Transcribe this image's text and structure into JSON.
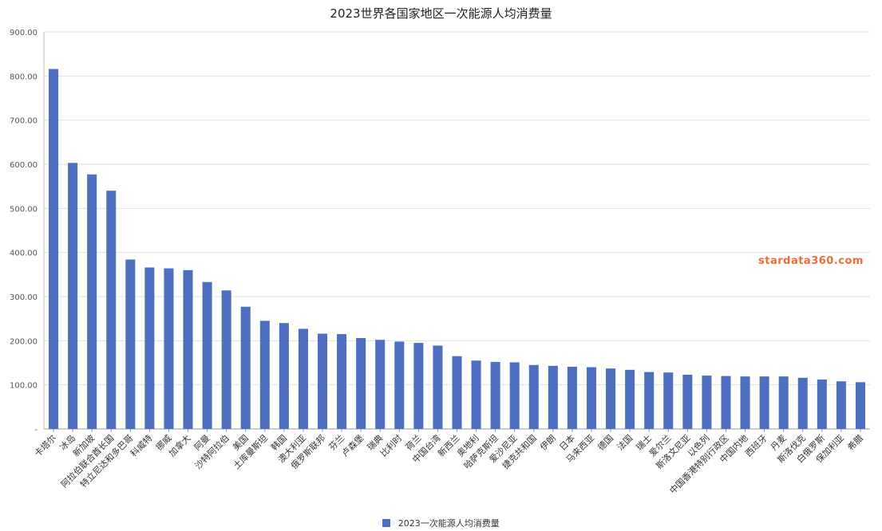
{
  "chart_data": {
    "type": "bar",
    "title": "2023世界各国家地区一次能源人均消费量",
    "series": [
      {
        "name": "2023一次能源人均消费量",
        "color": "#4e6fbf",
        "values": [
          816,
          603,
          577,
          540,
          384,
          366,
          364,
          360,
          333,
          314,
          277,
          245,
          240,
          227,
          216,
          215,
          206,
          202,
          198,
          195,
          189,
          165,
          155,
          152,
          151,
          145,
          143,
          141,
          140,
          137,
          134,
          129,
          128,
          123,
          121,
          120,
          119,
          119,
          119,
          116,
          112,
          108,
          106
        ]
      }
    ],
    "categories": [
      "卡塔尔",
      "冰岛",
      "新加坡",
      "阿拉伯联合酋长国",
      "特立尼达和多巴哥",
      "科威特",
      "挪威",
      "加拿大",
      "阿曼",
      "沙特阿拉伯",
      "美国",
      "土库曼斯坦",
      "韩国",
      "澳大利亚",
      "俄罗斯联邦",
      "芬兰",
      "卢森堡",
      "瑞典",
      "比利时",
      "荷兰",
      "中国台湾",
      "新西兰",
      "奥地利",
      "哈萨克斯坦",
      "爱沙尼亚",
      "捷克共和国",
      "伊朗",
      "日本",
      "马来西亚",
      "德国",
      "法国",
      "瑞士",
      "爱尔兰",
      "斯洛文尼亚",
      "以色列",
      "中国香港特别行政区",
      "中国内地",
      "西班牙",
      "丹麦",
      "斯洛伐克",
      "白俄罗斯",
      "保加利亚",
      "希腊"
    ],
    "y_ticks": [
      "-",
      "100.00",
      "200.00",
      "300.00",
      "400.00",
      "500.00",
      "600.00",
      "700.00",
      "800.00",
      "900.00"
    ],
    "ylim": [
      0,
      900
    ],
    "grid": true,
    "legend_position": "bottom"
  },
  "watermark": "stardata360.com"
}
